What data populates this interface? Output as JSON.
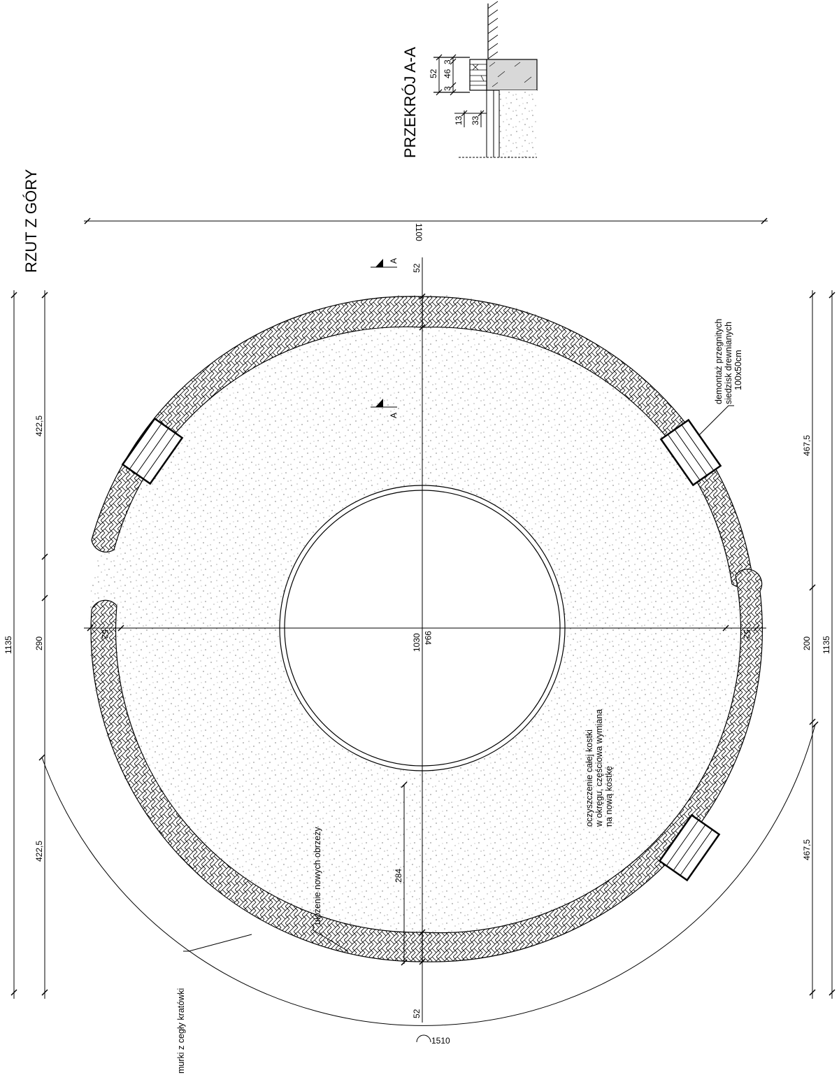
{
  "plan": {
    "title": "RZUT Z GÓRY",
    "dims": {
      "overall_width": "1100",
      "overall_length_left": "1135",
      "overall_length_right": "1135",
      "left_top": "422,5",
      "left_mid": "290",
      "left_bottom": "422,5",
      "right_top": "467,5",
      "right_mid": "200",
      "right_bottom": "467,5",
      "wall_top": "52",
      "wall_bottom": "52",
      "wall_left": "52",
      "wall_right": "52",
      "inner_diameter": "994",
      "center_diameter": "1030",
      "radius_284": "284",
      "arc_length": "1510"
    },
    "section_marks": [
      "A",
      "A"
    ],
    "notes": {
      "benches": [
        "demontaż przegnitych",
        "siedzisk drewnianych",
        "100x50cm"
      ],
      "cleaning": [
        "oczyszczenie całej kostki",
        "w okręgu, częściowa wymiana",
        "na nową kostkę"
      ],
      "edging": "ułożenie nowych obrzeży",
      "walls": "murki z cegły kratówki"
    }
  },
  "section": {
    "title": "PRZEKRÓJ A-A",
    "dims": [
      "52",
      "3",
      "46",
      "3",
      "33",
      "13"
    ]
  }
}
